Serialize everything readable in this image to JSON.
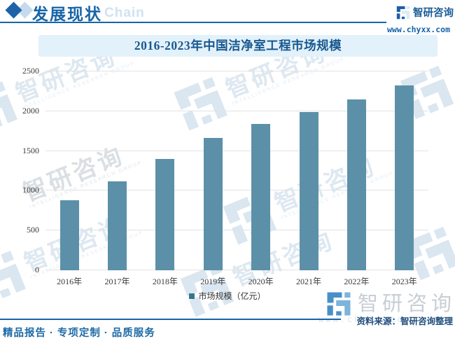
{
  "header": {
    "section_title": "发展现状",
    "section_sub": "Chain",
    "brand_name": "智研咨询",
    "website": "www.chyxx.com"
  },
  "chart": {
    "title": "2016-2023年中国洁净室工程市场规模",
    "legend_label": "市场规模（亿元）"
  },
  "chart_data": {
    "type": "bar",
    "title": "2016-2023年中国洁净室工程市场规模",
    "categories": [
      "2016年",
      "2017年",
      "2018年",
      "2019年",
      "2020年",
      "2021年",
      "2022年",
      "2023年"
    ],
    "series": [
      {
        "name": "市场规模（亿元）",
        "values": [
          880,
          1120,
          1400,
          1660,
          1840,
          1990,
          2150,
          2320
        ]
      }
    ],
    "xlabel": "",
    "ylabel": "",
    "ylim": [
      0,
      2500
    ],
    "yticks": [
      0,
      500,
      1000,
      1500,
      2000,
      2500
    ],
    "grid": true,
    "legend_position": "bottom",
    "bar_color": "#5c90a8",
    "legend_swatch_color": "#39758a"
  },
  "footer": {
    "source": "资料来源：智研咨询整理",
    "tagline": "精品报告 · 专项定制 · 品质服务"
  },
  "watermark": {
    "brand": "智研咨询",
    "subtext": "INTELLIGENCE RESEARCH GROUP",
    "site": "www.chyxx.com"
  },
  "colors": {
    "accent": "#1765a7",
    "bar": "#5c90a8",
    "title_bg": "#e3f1fb",
    "grid": "#e2e2e2"
  }
}
